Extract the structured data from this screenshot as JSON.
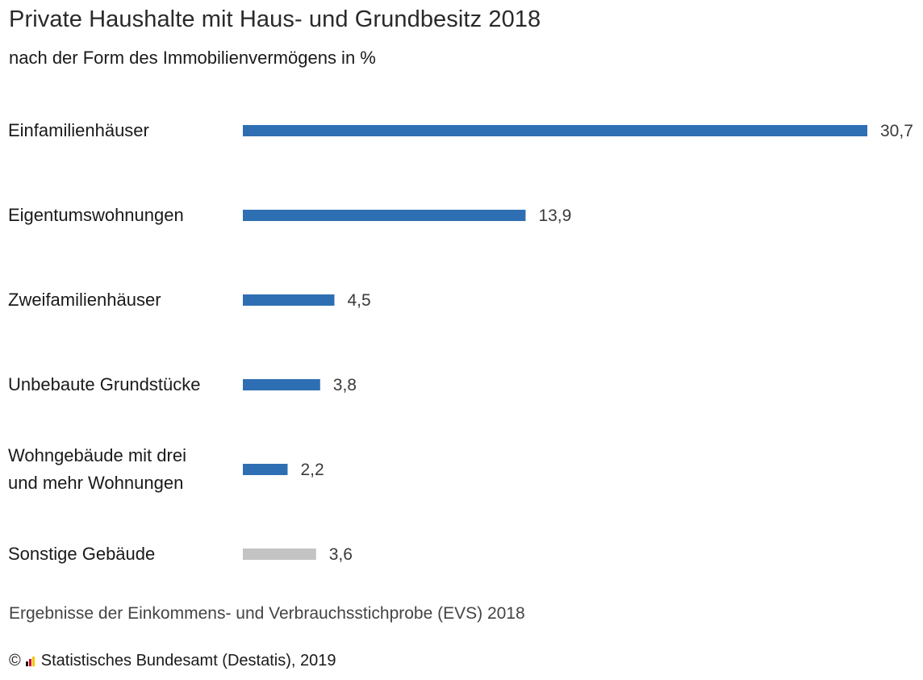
{
  "header": {
    "title": "Private Haushalte mit Haus- und Grundbesitz 2018",
    "subtitle": "nach der Form des Immobilienvermögens in %"
  },
  "chart_data": {
    "type": "bar",
    "orientation": "horizontal",
    "title": "Private Haushalte mit Haus- und Grundbesitz 2018",
    "subtitle": "nach der Form des Immobilienvermögens in %",
    "categories": [
      "Einfamilienhäuser",
      "Eigentumswohnungen",
      "Zweifamilienhäuser",
      "Unbebaute Grundstücke",
      "Wohngebäude mit drei und mehr Wohnungen",
      "Sonstige Gebäude"
    ],
    "category_lines": [
      [
        "Einfamilienhäuser"
      ],
      [
        "Eigentumswohnungen"
      ],
      [
        "Zweifamilienhäuser"
      ],
      [
        "Unbebaute Grundstücke"
      ],
      [
        "Wohngebäude mit drei",
        "und mehr Wohnungen"
      ],
      [
        "Sonstige Gebäude"
      ]
    ],
    "values": [
      30.7,
      13.9,
      4.5,
      3.8,
      2.2,
      3.6
    ],
    "value_labels": [
      "30,7",
      "13,9",
      "4,5",
      "3,8",
      "2,2",
      "3,6"
    ],
    "bar_colors": [
      "#2e6fb3",
      "#2e6fb3",
      "#2e6fb3",
      "#2e6fb3",
      "#2e6fb3",
      "#c3c3c3"
    ],
    "xlabel": "",
    "ylabel": "",
    "xlim": [
      0,
      30.7
    ],
    "grid": false,
    "legend": "none"
  },
  "footer": {
    "source": "Ergebnisse der Einkommens- und Verbrauchsstichprobe (EVS) 2018",
    "copyright_symbol": "©",
    "copyright": "Statistisches Bundesamt (Destatis), 2019"
  },
  "colors": {
    "primary_bar": "#2e6fb3",
    "other_bar": "#c3c3c3",
    "logo": [
      "#1a1a1a",
      "#d0021b",
      "#f5c400"
    ]
  },
  "icons": {
    "logo": "destatis-logo-icon"
  }
}
